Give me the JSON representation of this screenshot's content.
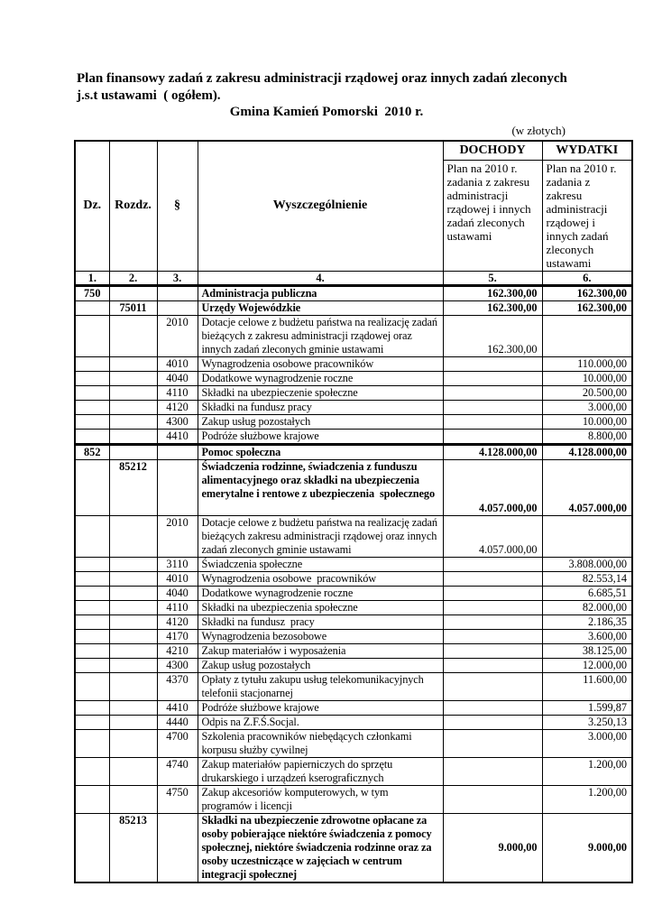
{
  "document": {
    "title_line1": "Plan finansowy zadań z zakresu administracji rządowej oraz innych zadań zleconych",
    "title_line2": "j.s.t ustawami  ( ogółem).",
    "subtitle": "Gmina Kamień Pomorski  2010 r.",
    "unit_note": "(w złotych)"
  },
  "table": {
    "columns": {
      "dz": "Dz.",
      "rozdz": "Rozdz.",
      "par": "§",
      "name": "Wyszczególnienie",
      "dochody": "DOCHODY",
      "wydatki": "WYDATKI"
    },
    "subheaders": {
      "dochody": "Plan na 2010 r. zadania z zakresu administracji rządowej i innych zadań zleconych ustawami",
      "wydatki": "Plan na 2010 r. zadania z zakresu administracji rządowej i innych zadań zleconych ustawami"
    },
    "numbering": [
      "1.",
      "2.",
      "3.",
      "4.",
      "5.",
      "6."
    ],
    "rows": [
      {
        "dz": "750",
        "name": "Administracja publiczna",
        "dochody": "162.300,00",
        "wydatki": "162.300,00"
      },
      {
        "rozdz": "75011",
        "name": "Urzędy Wojewódzkie",
        "dochody": "162.300,00",
        "wydatki": "162.300,00"
      },
      {
        "par": "2010",
        "name": "Dotacje celowe z budżetu państwa na realizację zadań bieżących z zakresu administracji rządowej oraz innych zadań zleconych gminie ustawami",
        "dochody": "162.300,00",
        "valign": "bottom"
      },
      {
        "par": "4010",
        "name": "Wynagrodzenia osobowe pracowników",
        "wydatki": "110.000,00"
      },
      {
        "par": "4040",
        "name": "Dodatkowe wynagrodzenie roczne",
        "wydatki": "10.000,00"
      },
      {
        "par": "4110",
        "name": "Składki na ubezpieczenie społeczne",
        "wydatki": "20.500,00"
      },
      {
        "par": "4120",
        "name": "Składki na fundusz pracy",
        "wydatki": "3.000,00"
      },
      {
        "par": "4300",
        "name": "Zakup usług pozostałych",
        "wydatki": "10.000,00"
      },
      {
        "par": "4410",
        "name": "Podróże służbowe krajowe",
        "wydatki": "8.800,00"
      },
      {
        "dz": "852",
        "name": "Pomoc społeczna",
        "dochody": "4.128.000,00",
        "wydatki": "4.128.000,00"
      },
      {
        "rozdz": "85212",
        "name": "Świadczenia rodzinne, świadczenia z funduszu alimentacyjnego oraz składki na ubezpieczenia emerytalne i rentowe z ubezpieczenia  społecznego",
        "dochody": "4.057.000,00",
        "wydatki": "4.057.000,00",
        "valign": "bottom",
        "h": 62
      },
      {
        "par": "2010",
        "name": "Dotacje celowe z budżetu państwa na realizację zadań bieżących zakresu administracji rządowej oraz innych zadań zleconych gminie ustawami",
        "dochody": "4.057.000,00",
        "valign": "bottom"
      },
      {
        "par": "3110",
        "name": "Świadczenia społeczne",
        "wydatki": "3.808.000,00"
      },
      {
        "par": "4010",
        "name": "Wynagrodzenia osobowe  pracowników",
        "wydatki": "82.553,14"
      },
      {
        "par": "4040",
        "name": "Dodatkowe wynagrodzenie roczne",
        "wydatki": "6.685,51"
      },
      {
        "par": "4110",
        "name": "Składki na ubezpieczenia społeczne",
        "wydatki": "82.000,00"
      },
      {
        "par": "4120",
        "name": "Składki na fundusz  pracy",
        "wydatki": "2.186,35"
      },
      {
        "par": "4170",
        "name": "Wynagrodzenia bezosobowe",
        "wydatki": "3.600,00"
      },
      {
        "par": "4210",
        "name": "Zakup materiałów i wyposażenia",
        "wydatki": "38.125,00"
      },
      {
        "par": "4300",
        "name": "Zakup usług pozostałych",
        "wydatki": "12.000,00"
      },
      {
        "par": "4370",
        "name": "Opłaty z tytułu zakupu usług telekomunikacyjnych telefonii stacjonarnej",
        "wydatki": "11.600,00",
        "valign": "top"
      },
      {
        "par": "4410",
        "name": "Podróże służbowe krajowe",
        "wydatki": "1.599,87"
      },
      {
        "par": "4440",
        "name": "Odpis na Z.F.Ś.Socjal.",
        "wydatki": "3.250,13"
      },
      {
        "par": "4700",
        "name": "Szkolenia pracowników niebędących członkami korpusu służby cywilnej",
        "wydatki": "3.000,00",
        "valign": "top"
      },
      {
        "par": "4740",
        "name": "Zakup materiałów papierniczych do sprzętu drukarskiego i urządzeń kserograficznych",
        "wydatki": "1.200,00",
        "valign": "top"
      },
      {
        "par": "4750",
        "name": "Zakup akcesoriów komputerowych, w tym programów i licencji",
        "wydatki": "1.200,00",
        "valign": "top"
      },
      {
        "rozdz": "85213",
        "name": "Składki na ubezpieczenie zdrowotne opłacane za osoby pobierające niektóre świadczenia z pomocy społecznej, niektóre świadczenia rodzinne oraz za osoby uczestniczące w zajęciach w centrum integracji społecznej",
        "dochody": "9.000,00",
        "wydatki": "9.000,00"
      }
    ]
  }
}
